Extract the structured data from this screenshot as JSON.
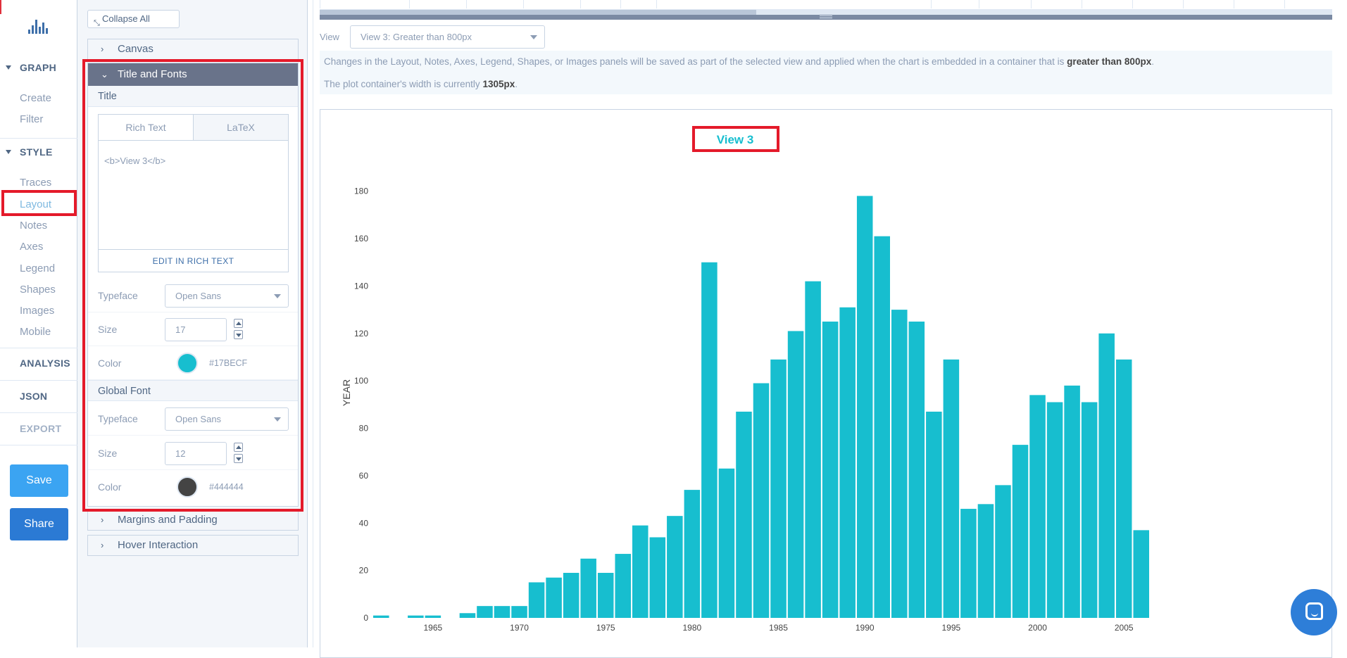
{
  "nav": {
    "sections": [
      {
        "id": "graph",
        "label": "GRAPH",
        "items": [
          "Create",
          "Filter"
        ]
      },
      {
        "id": "style",
        "label": "STYLE",
        "items": [
          "Traces",
          "Layout",
          "Notes",
          "Axes",
          "Legend",
          "Shapes",
          "Images",
          "Mobile"
        ]
      }
    ],
    "active_item": "Layout",
    "analysis": "ANALYSIS",
    "json": "JSON",
    "export": "EXPORT",
    "save": "Save",
    "share": "Share"
  },
  "panel": {
    "collapse_all": "Collapse All",
    "folds": {
      "canvas": "Canvas",
      "title_fonts": "Title and Fonts",
      "margins": "Margins and Padding",
      "hover": "Hover Interaction"
    },
    "title_section": "Title",
    "editor": {
      "tab_rich": "Rich Text",
      "tab_latex": "LaTeX",
      "content": "<b>View 3</b>",
      "edit_link": "EDIT IN RICH TEXT"
    },
    "title_font": {
      "typeface_label": "Typeface",
      "typeface": "Open Sans",
      "size_label": "Size",
      "size": "17",
      "color_label": "Color",
      "color": "#17BECF"
    },
    "global_section": "Global Font",
    "global_font": {
      "typeface_label": "Typeface",
      "typeface": "Open Sans",
      "size_label": "Size",
      "size": "12",
      "color_label": "Color",
      "color": "#444444"
    }
  },
  "main": {
    "view_label": "View",
    "view_selected": "View 3: Greater than 800px",
    "info_line1_pre": "Changes in the Layout, Notes, Axes, Legend, Shapes, or Images panels will be saved as part of the selected view and applied when the chart is embedded in a container that is ",
    "info_line1_bold": "greater than 800px",
    "info_line1_post": ".",
    "info_line2_pre": "The plot container's width is currently ",
    "info_line2_bold": "1305px",
    "info_line2_post": "."
  },
  "chart_data": {
    "type": "bar",
    "title": "View 3",
    "title_color": "#17BECF",
    "bar_color": "#17BECF",
    "ylabel": "YEAR",
    "xlabel": "",
    "ylim": [
      0,
      190
    ],
    "yticks": [
      0,
      20,
      40,
      60,
      80,
      100,
      120,
      140,
      160,
      180
    ],
    "xticks": [
      1965,
      1970,
      1975,
      1980,
      1985,
      1990,
      1995,
      2000,
      2005
    ],
    "x": [
      1962,
      1963,
      1964,
      1965,
      1966,
      1967,
      1968,
      1969,
      1970,
      1971,
      1972,
      1973,
      1974,
      1975,
      1976,
      1977,
      1978,
      1979,
      1980,
      1981,
      1982,
      1983,
      1984,
      1985,
      1986,
      1987,
      1988,
      1989,
      1990,
      1991,
      1992,
      1993,
      1994,
      1995,
      1996,
      1997,
      1998,
      1999,
      2000,
      2001,
      2002,
      2003,
      2004,
      2005,
      2006
    ],
    "values": [
      1,
      0,
      1,
      1,
      0,
      2,
      5,
      5,
      5,
      15,
      17,
      19,
      25,
      19,
      27,
      39,
      34,
      43,
      54,
      150,
      63,
      87,
      99,
      109,
      121,
      142,
      125,
      131,
      178,
      161,
      130,
      125,
      87,
      109,
      46,
      48,
      56,
      73,
      94,
      91,
      98,
      91,
      120,
      109,
      37
    ],
    "grid": false
  }
}
